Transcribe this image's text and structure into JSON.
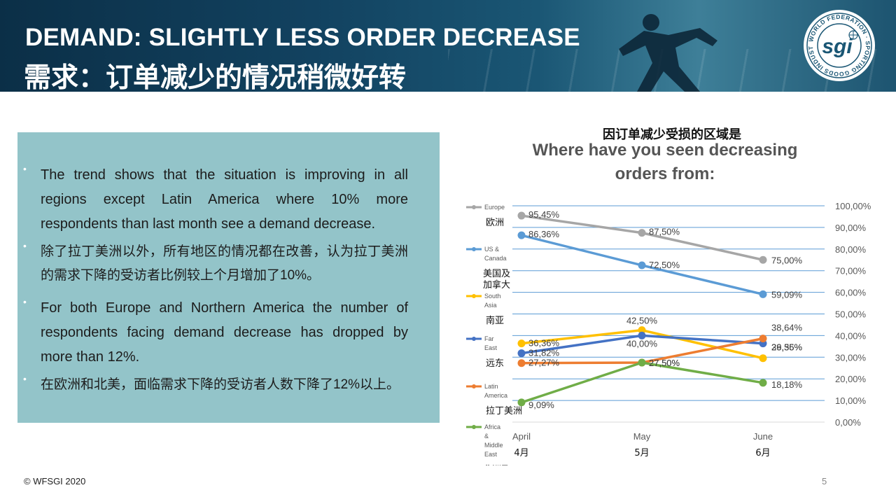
{
  "header": {
    "title_en": "DEMAND: SLIGHTLY LESS ORDER DECREASE",
    "title_cn": "需求：订单减少的情况稍微好转",
    "logo_text": "sgi",
    "logo_ring_text": "WORLD FEDERATION SPORTING GOODS INDUSTRY"
  },
  "colors": {
    "banner": "#124260",
    "textbox": "#93c4c9"
  },
  "bullets": [
    {
      "text": "The trend shows that the situation is improving in all regions except Latin America where 10% more respondents than last month see a demand decrease.",
      "lang": "en"
    },
    {
      "text": "除了拉丁美洲以外，所有地区的情况都在改善，认为拉丁美洲的需求下降的受访者比例较上个月增加了10%。",
      "lang": "cn"
    },
    {
      "text": "For both Europe and Northern America the number of respondents facing demand decrease has dropped by more than 12%.",
      "lang": "en"
    },
    {
      "text": "在欧洲和北美，面临需求下降的受访者人数下降了12%以上。",
      "lang": "cn"
    }
  ],
  "chart_title_cn": "因订单减少受损的区域是",
  "chart_title_en": "Where have you seen decreasing orders from:",
  "chart_data": {
    "type": "line",
    "categories": [
      "April",
      "May",
      "June"
    ],
    "categories_cn": [
      "4月",
      "5月",
      "6月"
    ],
    "y_tick_labels": [
      "0,00%",
      "10,00%",
      "20,00%",
      "30,00%",
      "40,00%",
      "50,00%",
      "60,00%",
      "70,00%",
      "80,00%",
      "90,00%",
      "100,00%"
    ],
    "ylim": [
      0,
      100
    ],
    "y_axis_position": "right",
    "grid": true,
    "legend_position": "left",
    "series": [
      {
        "name": "Europe",
        "name_cn": "欧洲",
        "color": "#a6a6a6",
        "values": [
          95.45,
          87.5,
          75.0
        ],
        "labels": [
          "95,45%",
          "87,50%",
          "75,00%"
        ]
      },
      {
        "name": "US & Canada",
        "name_cn": "美国及加拿大",
        "color": "#5b9bd5",
        "values": [
          86.36,
          72.5,
          59.09
        ],
        "labels": [
          "86,36%",
          "72,50%",
          "59,09%"
        ]
      },
      {
        "name": "South Asia",
        "name_cn": "南亚",
        "color": "#ffc000",
        "values": [
          36.36,
          42.5,
          29.55
        ],
        "labels": [
          "36,36%",
          "42,50%",
          "29,55%"
        ]
      },
      {
        "name": "Far East",
        "name_cn": "远东",
        "color": "#4472c4",
        "values": [
          31.82,
          40.0,
          36.36
        ],
        "labels": [
          "31,82%",
          "40,00%",
          "36,36%"
        ]
      },
      {
        "name": "Latin America",
        "name_cn": "拉丁美洲",
        "color": "#ed7d31",
        "values": [
          27.27,
          27.5,
          38.64
        ],
        "labels": [
          "27,27%",
          "27,50%",
          "38,64%"
        ]
      },
      {
        "name": "Africa & Middle East",
        "name_cn": "非洲及中东",
        "color": "#70ad47",
        "values": [
          9.09,
          27.5,
          18.18
        ],
        "labels": [
          "9,09%",
          "27,50%",
          "18,18%"
        ]
      }
    ]
  },
  "footer": {
    "copyright": "© WFSGI 2020",
    "page_number": "5"
  }
}
